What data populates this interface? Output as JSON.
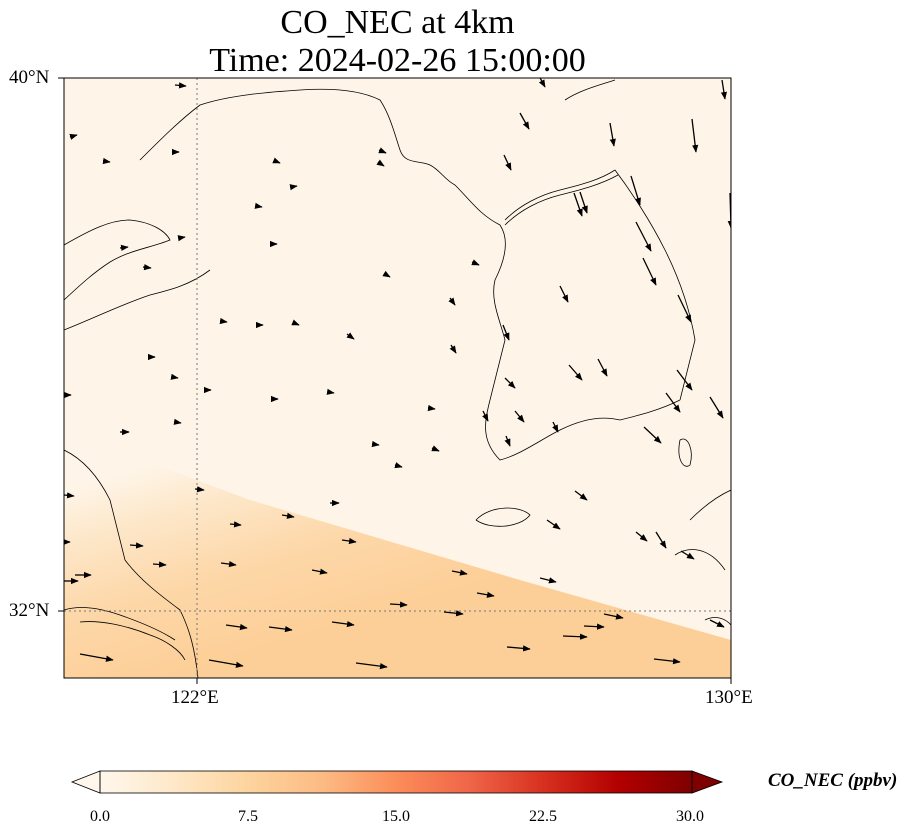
{
  "title": {
    "line1": "CO_NEC at 4km",
    "line2": "Time: 2024-02-26 15:00:00"
  },
  "axes": {
    "lat_labels": [
      "40°N",
      "32°N"
    ],
    "lon_labels": [
      "122°E",
      "130°E"
    ]
  },
  "colorbar": {
    "label": "CO_NEC (ppbv)",
    "ticks": [
      "0.0",
      "7.5",
      "15.0",
      "22.5",
      "30.0"
    ],
    "colormap": "OrRd",
    "colors": [
      "#fff7ec",
      "#fee8c8",
      "#fdd49e",
      "#fdbb84",
      "#fc8d59",
      "#ef6548",
      "#d7301f",
      "#b30000",
      "#7f0000"
    ],
    "extend": "both"
  },
  "chart_data": {
    "type": "map",
    "variable": "CO_NEC",
    "level": "4km",
    "time": "2024-02-26 15:00:00",
    "units": "ppbv",
    "lon_range": [
      120,
      130
    ],
    "lat_range": [
      31,
      40
    ],
    "gridlines": {
      "lon": [
        122
      ],
      "lat": [
        32
      ],
      "style": "dotted"
    },
    "colorbar_range": [
      0,
      30
    ],
    "field_summary": "Mostly ~0-2 ppbv across the domain; a band of ~4-7 ppbv in the southwest (south of ~33.5°N west of ~126°E), tapering toward the southeast corner",
    "wind_vectors_shown": true
  }
}
